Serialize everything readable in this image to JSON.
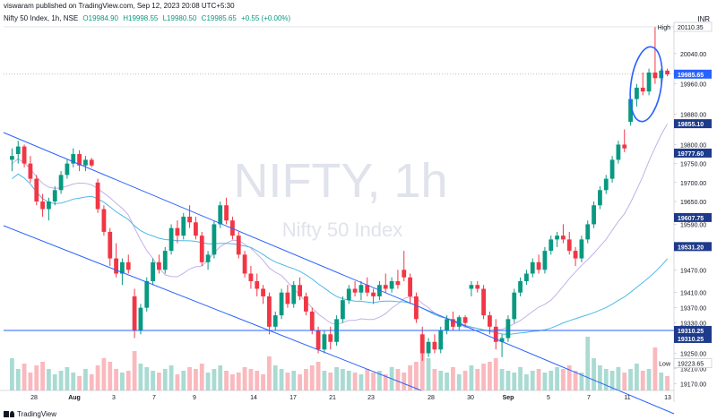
{
  "header": {
    "published": "viswaram published on TradingView.com, Sep 12, 2023 20:08 UTC+5:30"
  },
  "ohlc": {
    "symbol": "Nifty 50 Index, 1h, NSE",
    "open": "O19984.90",
    "high": "H19998.55",
    "low": "L19980.50",
    "close": "C19985.65",
    "change": "+0.55 (+0.00%)"
  },
  "currency": "INR",
  "watermark": {
    "title": "NIFTY, 1h",
    "subtitle": "Nifty 50 Index"
  },
  "footer": {
    "brand": "TradingView"
  },
  "colors": {
    "up": "#089981",
    "down": "#f23645",
    "channel": "#2962ff",
    "ma_fast": "#c4b0e8",
    "ma_slow": "#4fb8e6",
    "watermark": "#e0e3eb"
  },
  "chart_data": {
    "type": "candlestick",
    "y_axis_ticks": [
      20040,
      19960,
      19880,
      19800,
      19750,
      19700,
      19650,
      19590,
      19470,
      19410,
      19370,
      19330,
      19250,
      19210,
      19170
    ],
    "ylim": [
      19152,
      20115
    ],
    "x_axis_labels": [
      "28",
      "Aug",
      "3",
      "7",
      "9",
      "14",
      "17",
      "21",
      "23",
      "28",
      "30",
      "Sep",
      "5",
      "7",
      "11",
      "13"
    ],
    "price_labels": [
      {
        "value": 20110.35,
        "text": "20110.35",
        "prefix": "High",
        "style": "outline"
      },
      {
        "value": 19985.65,
        "text": "19985.65",
        "style": "filled"
      },
      {
        "value": 19855.1,
        "text": "19855.10",
        "style": "filled"
      },
      {
        "value": 19777.6,
        "text": "19777.60",
        "style": "filled"
      },
      {
        "value": 19607.75,
        "text": "19607.75",
        "style": "filled"
      },
      {
        "value": 19531.2,
        "text": "19531.20",
        "style": "filled"
      },
      {
        "value": 19310.25,
        "text": "19310.25",
        "style": "filled"
      },
      {
        "value": 19310.25,
        "text": "19310.25",
        "style": "filled"
      },
      {
        "value": 19223.65,
        "text": "19223.65",
        "prefix": "Low",
        "style": "outline"
      }
    ],
    "candles": [
      {
        "o": 19760,
        "h": 19790,
        "l": 19730,
        "c": 19770
      },
      {
        "o": 19775,
        "h": 19810,
        "l": 19750,
        "c": 19795
      },
      {
        "o": 19795,
        "h": 19800,
        "l": 19740,
        "c": 19750
      },
      {
        "o": 19750,
        "h": 19770,
        "l": 19700,
        "c": 19710
      },
      {
        "o": 19710,
        "h": 19720,
        "l": 19640,
        "c": 19650
      },
      {
        "o": 19650,
        "h": 19670,
        "l": 19610,
        "c": 19630
      },
      {
        "o": 19630,
        "h": 19660,
        "l": 19600,
        "c": 19650
      },
      {
        "o": 19650,
        "h": 19690,
        "l": 19640,
        "c": 19680
      },
      {
        "o": 19680,
        "h": 19730,
        "l": 19670,
        "c": 19720
      },
      {
        "o": 19720,
        "h": 19760,
        "l": 19710,
        "c": 19750
      },
      {
        "o": 19750,
        "h": 19790,
        "l": 19740,
        "c": 19775
      },
      {
        "o": 19775,
        "h": 19785,
        "l": 19730,
        "c": 19745
      },
      {
        "o": 19745,
        "h": 19770,
        "l": 19730,
        "c": 19760
      },
      {
        "o": 19760,
        "h": 19765,
        "l": 19740,
        "c": 19745
      },
      {
        "o": 19700,
        "h": 19710,
        "l": 19620,
        "c": 19630
      },
      {
        "o": 19630,
        "h": 19640,
        "l": 19560,
        "c": 19570
      },
      {
        "o": 19570,
        "h": 19580,
        "l": 19480,
        "c": 19500
      },
      {
        "o": 19500,
        "h": 19540,
        "l": 19450,
        "c": 19460
      },
      {
        "o": 19460,
        "h": 19500,
        "l": 19430,
        "c": 19490
      },
      {
        "o": 19490,
        "h": 19510,
        "l": 19460,
        "c": 19470
      },
      {
        "o": 19400,
        "h": 19420,
        "l": 19290,
        "c": 19310
      },
      {
        "o": 19310,
        "h": 19380,
        "l": 19300,
        "c": 19370
      },
      {
        "o": 19370,
        "h": 19450,
        "l": 19360,
        "c": 19440
      },
      {
        "o": 19440,
        "h": 19500,
        "l": 19430,
        "c": 19490
      },
      {
        "o": 19490,
        "h": 19510,
        "l": 19460,
        "c": 19470
      },
      {
        "o": 19470,
        "h": 19530,
        "l": 19460,
        "c": 19520
      },
      {
        "o": 19520,
        "h": 19590,
        "l": 19510,
        "c": 19580
      },
      {
        "o": 19580,
        "h": 19600,
        "l": 19540,
        "c": 19560
      },
      {
        "o": 19560,
        "h": 19620,
        "l": 19550,
        "c": 19610
      },
      {
        "o": 19610,
        "h": 19640,
        "l": 19580,
        "c": 19595
      },
      {
        "o": 19595,
        "h": 19610,
        "l": 19550,
        "c": 19560
      },
      {
        "o": 19560,
        "h": 19570,
        "l": 19480,
        "c": 19490
      },
      {
        "o": 19490,
        "h": 19520,
        "l": 19470,
        "c": 19510
      },
      {
        "o": 19510,
        "h": 19600,
        "l": 19500,
        "c": 19590
      },
      {
        "o": 19590,
        "h": 19650,
        "l": 19580,
        "c": 19640
      },
      {
        "o": 19640,
        "h": 19660,
        "l": 19590,
        "c": 19600
      },
      {
        "o": 19600,
        "h": 19610,
        "l": 19550,
        "c": 19560
      },
      {
        "o": 19560,
        "h": 19570,
        "l": 19500,
        "c": 19510
      },
      {
        "o": 19510,
        "h": 19520,
        "l": 19450,
        "c": 19460
      },
      {
        "o": 19460,
        "h": 19480,
        "l": 19420,
        "c": 19440
      },
      {
        "o": 19440,
        "h": 19460,
        "l": 19400,
        "c": 19420
      },
      {
        "o": 19420,
        "h": 19430,
        "l": 19380,
        "c": 19400
      },
      {
        "o": 19400,
        "h": 19410,
        "l": 19300,
        "c": 19320
      },
      {
        "o": 19320,
        "h": 19360,
        "l": 19310,
        "c": 19350
      },
      {
        "o": 19350,
        "h": 19420,
        "l": 19340,
        "c": 19410
      },
      {
        "o": 19410,
        "h": 19430,
        "l": 19370,
        "c": 19380
      },
      {
        "o": 19380,
        "h": 19440,
        "l": 19370,
        "c": 19430
      },
      {
        "o": 19430,
        "h": 19450,
        "l": 19390,
        "c": 19400
      },
      {
        "o": 19400,
        "h": 19410,
        "l": 19350,
        "c": 19360
      },
      {
        "o": 19360,
        "h": 19370,
        "l": 19300,
        "c": 19310
      },
      {
        "o": 19310,
        "h": 19320,
        "l": 19250,
        "c": 19260
      },
      {
        "o": 19260,
        "h": 19310,
        "l": 19250,
        "c": 19300
      },
      {
        "o": 19300,
        "h": 19320,
        "l": 19260,
        "c": 19280
      },
      {
        "o": 19280,
        "h": 19350,
        "l": 19270,
        "c": 19340
      },
      {
        "o": 19340,
        "h": 19400,
        "l": 19330,
        "c": 19390
      },
      {
        "o": 19390,
        "h": 19430,
        "l": 19380,
        "c": 19420
      },
      {
        "o": 19420,
        "h": 19440,
        "l": 19400,
        "c": 19410
      },
      {
        "o": 19410,
        "h": 19440,
        "l": 19390,
        "c": 19430
      },
      {
        "o": 19430,
        "h": 19450,
        "l": 19400,
        "c": 19410
      },
      {
        "o": 19410,
        "h": 19420,
        "l": 19380,
        "c": 19400
      },
      {
        "o": 19400,
        "h": 19440,
        "l": 19390,
        "c": 19430
      },
      {
        "o": 19430,
        "h": 19460,
        "l": 19410,
        "c": 19420
      },
      {
        "o": 19420,
        "h": 19450,
        "l": 19410,
        "c": 19440
      },
      {
        "o": 19440,
        "h": 19470,
        "l": 19420,
        "c": 19430
      },
      {
        "o": 19470,
        "h": 19520,
        "l": 19440,
        "c": 19450
      },
      {
        "o": 19450,
        "h": 19460,
        "l": 19380,
        "c": 19400
      },
      {
        "o": 19400,
        "h": 19410,
        "l": 19330,
        "c": 19340
      },
      {
        "o": 19300,
        "h": 19320,
        "l": 19230,
        "c": 19250
      },
      {
        "o": 19250,
        "h": 19290,
        "l": 19240,
        "c": 19280
      },
      {
        "o": 19280,
        "h": 19300,
        "l": 19250,
        "c": 19260
      },
      {
        "o": 19260,
        "h": 19320,
        "l": 19250,
        "c": 19310
      },
      {
        "o": 19310,
        "h": 19350,
        "l": 19300,
        "c": 19340
      },
      {
        "o": 19340,
        "h": 19360,
        "l": 19310,
        "c": 19320
      },
      {
        "o": 19320,
        "h": 19350,
        "l": 19310,
        "c": 19345
      },
      {
        "o": 19345,
        "h": 19350,
        "l": 19320,
        "c": 19330
      },
      {
        "o": 19420,
        "h": 19440,
        "l": 19400,
        "c": 19430
      },
      {
        "o": 19430,
        "h": 19440,
        "l": 19410,
        "c": 19420
      },
      {
        "o": 19420,
        "h": 19430,
        "l": 19340,
        "c": 19350
      },
      {
        "o": 19350,
        "h": 19360,
        "l": 19300,
        "c": 19320
      },
      {
        "o": 19320,
        "h": 19340,
        "l": 19260,
        "c": 19280
      },
      {
        "o": 19280,
        "h": 19300,
        "l": 19240,
        "c": 19290
      },
      {
        "o": 19290,
        "h": 19350,
        "l": 19280,
        "c": 19340
      },
      {
        "o": 19340,
        "h": 19420,
        "l": 19330,
        "c": 19410
      },
      {
        "o": 19410,
        "h": 19450,
        "l": 19400,
        "c": 19440
      },
      {
        "o": 19440,
        "h": 19470,
        "l": 19430,
        "c": 19460
      },
      {
        "o": 19460,
        "h": 19500,
        "l": 19450,
        "c": 19490
      },
      {
        "o": 19490,
        "h": 19510,
        "l": 19460,
        "c": 19470
      },
      {
        "o": 19470,
        "h": 19530,
        "l": 19460,
        "c": 19520
      },
      {
        "o": 19520,
        "h": 19560,
        "l": 19510,
        "c": 19550
      },
      {
        "o": 19550,
        "h": 19570,
        "l": 19530,
        "c": 19560
      },
      {
        "o": 19560,
        "h": 19590,
        "l": 19540,
        "c": 19550
      },
      {
        "o": 19550,
        "h": 19570,
        "l": 19510,
        "c": 19520
      },
      {
        "o": 19520,
        "h": 19530,
        "l": 19480,
        "c": 19500
      },
      {
        "o": 19500,
        "h": 19560,
        "l": 19490,
        "c": 19550
      },
      {
        "o": 19550,
        "h": 19600,
        "l": 19540,
        "c": 19590
      },
      {
        "o": 19590,
        "h": 19650,
        "l": 19580,
        "c": 19640
      },
      {
        "o": 19640,
        "h": 19690,
        "l": 19630,
        "c": 19680
      },
      {
        "o": 19680,
        "h": 19720,
        "l": 19670,
        "c": 19710
      },
      {
        "o": 19710,
        "h": 19770,
        "l": 19700,
        "c": 19760
      },
      {
        "o": 19760,
        "h": 19810,
        "l": 19750,
        "c": 19800
      },
      {
        "o": 19800,
        "h": 19840,
        "l": 19780,
        "c": 19790
      },
      {
        "o": 19860,
        "h": 19930,
        "l": 19850,
        "c": 19920
      },
      {
        "o": 19920,
        "h": 19960,
        "l": 19900,
        "c": 19950
      },
      {
        "o": 19950,
        "h": 19990,
        "l": 19930,
        "c": 19940
      },
      {
        "o": 19940,
        "h": 20000,
        "l": 19930,
        "c": 19990
      },
      {
        "o": 19990,
        "h": 20110,
        "l": 19960,
        "c": 19975
      },
      {
        "o": 19975,
        "h": 20000,
        "l": 19960,
        "c": 19995
      },
      {
        "o": 19995,
        "h": 20000,
        "l": 19980,
        "c": 19985
      }
    ],
    "volume": [
      18,
      12,
      15,
      10,
      14,
      16,
      12,
      9,
      11,
      13,
      10,
      8,
      12,
      9,
      14,
      18,
      16,
      12,
      10,
      11,
      22,
      15,
      13,
      11,
      10,
      12,
      14,
      9,
      11,
      13,
      12,
      15,
      10,
      12,
      14,
      11,
      9,
      10,
      13,
      12,
      11,
      9,
      19,
      14,
      12,
      10,
      11,
      9,
      12,
      14,
      16,
      11,
      10,
      13,
      12,
      11,
      10,
      9,
      12,
      10,
      11,
      9,
      13,
      12,
      10,
      14,
      16,
      30,
      18,
      12,
      11,
      10,
      13,
      9,
      11,
      14,
      12,
      15,
      16,
      18,
      12,
      11,
      10,
      13,
      9,
      11,
      12,
      10,
      11,
      13,
      12,
      14,
      11,
      10,
      30,
      18,
      14,
      12,
      11,
      13,
      10,
      12,
      15,
      11,
      12,
      24,
      10,
      8
    ]
  }
}
